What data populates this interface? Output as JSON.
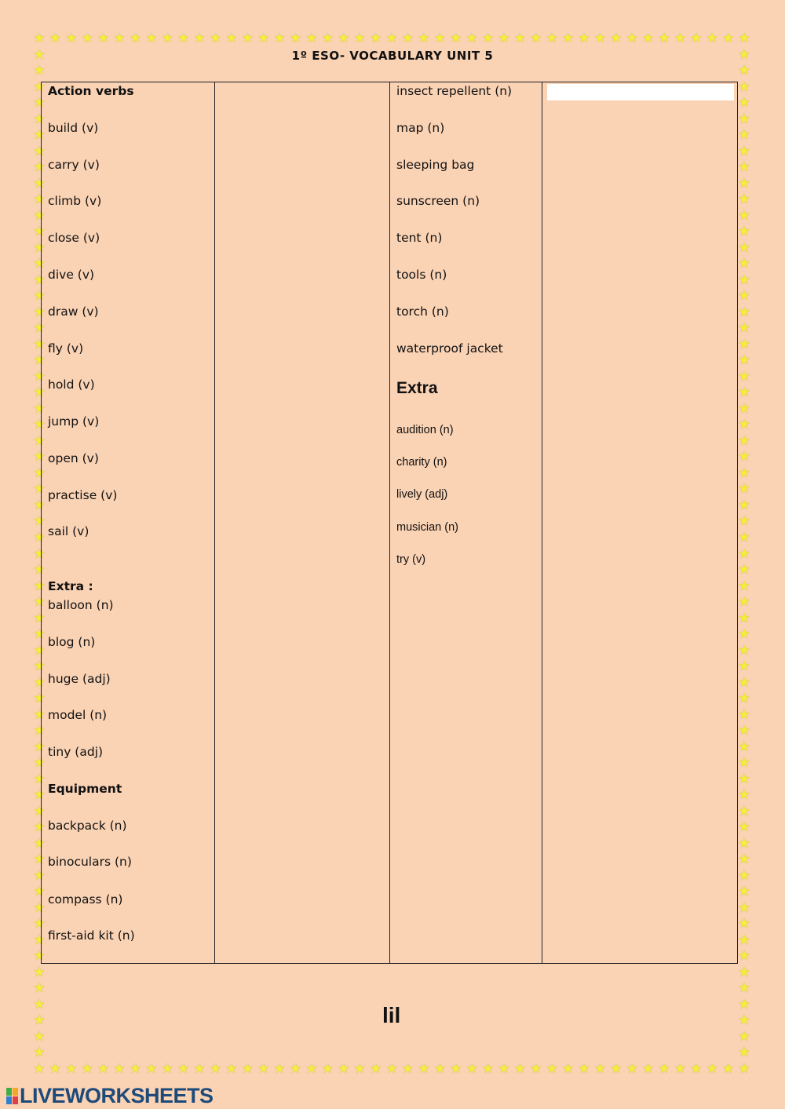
{
  "title": "1º ESO- VOCABULARY UNIT 5",
  "colors": {
    "background": "#fad2b4",
    "star": "#f6ee3a",
    "logo": "#1e4a7a"
  },
  "left_column": [
    {
      "text": "Action verbs",
      "style": "bold"
    },
    {
      "text": "build (v)"
    },
    {
      "text": "carry (v)"
    },
    {
      "text": "climb (v)"
    },
    {
      "text": "close (v)"
    },
    {
      "text": "dive (v)"
    },
    {
      "text": "draw (v)"
    },
    {
      "text": "fly (v)"
    },
    {
      "text": "hold (v)"
    },
    {
      "text": "jump (v)"
    },
    {
      "text": "open (v)"
    },
    {
      "text": "practise (v)"
    },
    {
      "text": "sail (v)"
    },
    {
      "text": "Extra :",
      "style": "bold"
    },
    {
      "text": "balloon (n)"
    },
    {
      "text": "blog (n)"
    },
    {
      "text": "huge (adj)"
    },
    {
      "text": "model (n)"
    },
    {
      "text": "tiny (adj)"
    },
    {
      "text": "Equipment",
      "style": "bold"
    },
    {
      "text": "backpack (n)"
    },
    {
      "text": "binoculars (n)"
    },
    {
      "text": "compass (n)"
    },
    {
      "text": "first-aid kit (n)"
    }
  ],
  "right_column": [
    {
      "text": "insect repellent (n)"
    },
    {
      "text": "map (n)"
    },
    {
      "text": "sleeping bag"
    },
    {
      "text": "sunscreen (n)"
    },
    {
      "text": "tent (n)"
    },
    {
      "text": "tools (n)"
    },
    {
      "text": "torch (n)"
    },
    {
      "text": "waterproof jacket"
    },
    {
      "text": "Extra",
      "style": "big"
    },
    {
      "text": "audition (n)",
      "style": "small"
    },
    {
      "text": "charity (n)",
      "style": "small"
    },
    {
      "text": "lively (adj)",
      "style": "small"
    },
    {
      "text": "musician (n)",
      "style": "small"
    },
    {
      "text": "try (v)",
      "style": "small"
    }
  ],
  "answer_input": {
    "value": "",
    "placeholder": ""
  },
  "footer_text": "lil",
  "logo": {
    "text": "LIVEWORKSHEETS",
    "letters": [
      "L",
      "I",
      "V",
      "E"
    ]
  },
  "icons": {
    "border": "star-icon"
  }
}
